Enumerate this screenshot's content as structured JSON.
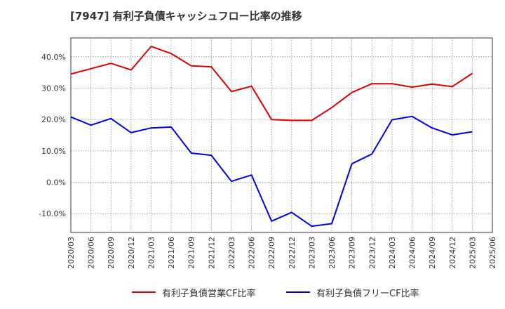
{
  "chart_data": {
    "type": "line",
    "title": "[7947]  有利子負債キャッシュフロー比率の推移",
    "x": [
      "2020/03",
      "2020/06",
      "2020/09",
      "2020/12",
      "2021/03",
      "2021/06",
      "2021/09",
      "2021/12",
      "2022/03",
      "2022/06",
      "2022/09",
      "2022/12",
      "2023/03",
      "2023/06",
      "2023/09",
      "2023/12",
      "2024/03",
      "2024/06",
      "2024/09",
      "2024/12",
      "2025/03",
      "2025/06"
    ],
    "ylim": [
      -16,
      46
    ],
    "yticks": [
      -10,
      0,
      10,
      20,
      30,
      40
    ],
    "ytick_labels": [
      "-10.0%",
      "0.0%",
      "10.0%",
      "20.0%",
      "30.0%",
      "40.0%"
    ],
    "grid": true,
    "legend_position": "bottom",
    "series": [
      {
        "name": "有利子負債営業CF比率",
        "color": "#dd0000",
        "values": [
          34.5,
          36.2,
          37.9,
          35.8,
          43.3,
          41.0,
          37.1,
          36.8,
          28.9,
          30.6,
          20.0,
          19.7,
          19.7,
          23.8,
          28.6,
          31.4,
          31.4,
          30.3,
          31.3,
          30.5,
          34.7,
          null
        ]
      },
      {
        "name": "有利子負債フリーCF比率",
        "color": "#0000dd",
        "values": [
          20.8,
          18.2,
          20.3,
          15.8,
          17.3,
          17.6,
          9.3,
          8.6,
          0.3,
          2.3,
          -12.4,
          -9.6,
          -14.0,
          -13.2,
          5.9,
          9.0,
          19.9,
          21.0,
          17.3,
          15.1,
          16.1,
          null
        ]
      }
    ]
  }
}
